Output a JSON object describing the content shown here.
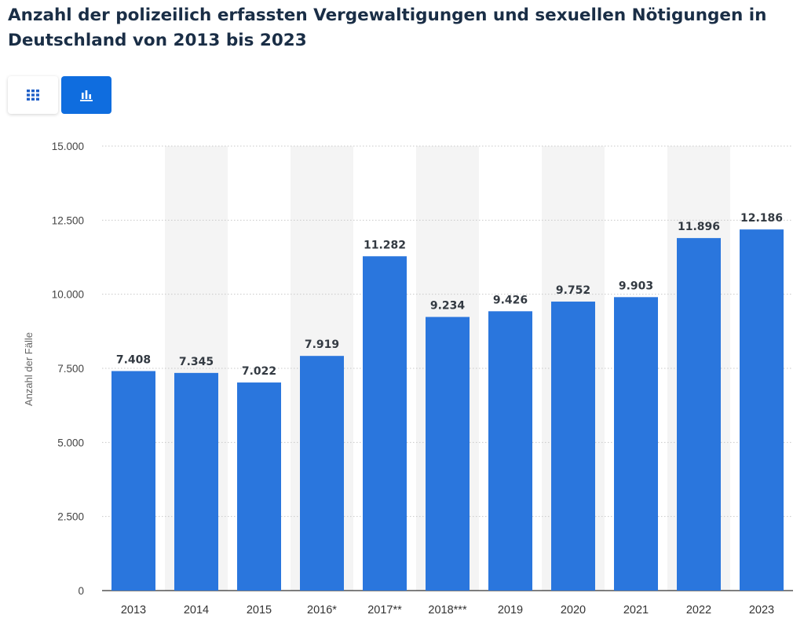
{
  "title": "Anzahl der polizeilich erfassten Vergewaltigungen und sexuellen Nötigungen in Deutschland von 2013 bis 2023",
  "view_toggle": {
    "table_icon": "grid-icon",
    "chart_icon": "bar-chart-icon",
    "active": "chart",
    "active_color": "#0f6ddf"
  },
  "chart_data": {
    "type": "bar",
    "categories": [
      "2013",
      "2014",
      "2015",
      "2016*",
      "2017**",
      "2018***",
      "2019",
      "2020",
      "2021",
      "2022",
      "2023"
    ],
    "values": [
      7408,
      7345,
      7022,
      7919,
      11282,
      9234,
      9426,
      9752,
      9903,
      11896,
      12186
    ],
    "data_labels": [
      "7.408",
      "7.345",
      "7.022",
      "7.919",
      "11.282",
      "9.234",
      "9.426",
      "9.752",
      "9.903",
      "11.896",
      "12.186"
    ],
    "ylabel": "Anzahl der Fälle",
    "xlabel": "",
    "ylim": [
      0,
      15000
    ],
    "yticks": [
      0,
      2500,
      5000,
      7500,
      10000,
      12500,
      15000
    ],
    "ytick_labels": [
      "0",
      "2.500",
      "5.000",
      "7.500",
      "10.000",
      "12.500",
      "15.000"
    ],
    "bar_color": "#2a76dd",
    "band_color": "#f4f4f4",
    "grid": true
  }
}
